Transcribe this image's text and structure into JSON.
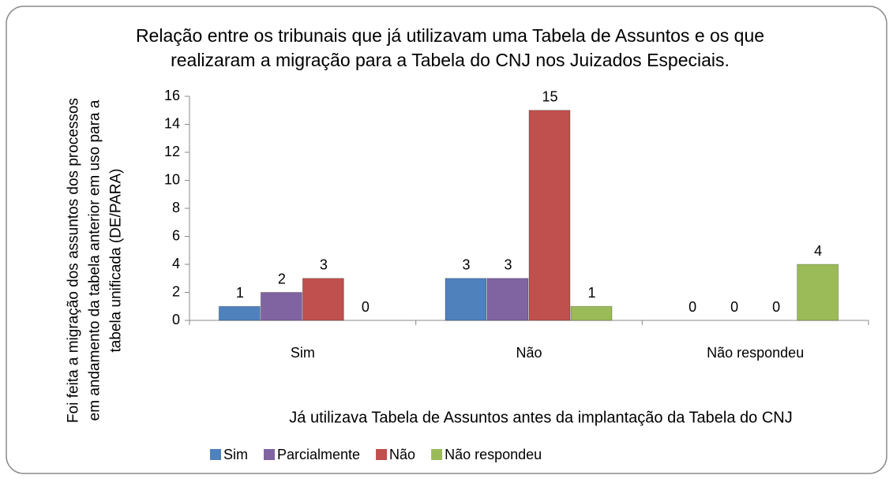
{
  "chart_data": {
    "type": "bar",
    "title": "Relação entre os tribunais que já utilizavam uma Tabela de Assuntos e os que realizaram a migração para a Tabela do CNJ nos Juizados Especiais.",
    "x_label": "Já utilizava Tabela de Assuntos antes da implantação da Tabela do CNJ",
    "y_label": "Foi feita a migração dos assuntos dos processos em andamento da tabela anterior em uso para a tabela unificada (DE/PARA)",
    "categories": [
      "Sim",
      "Não",
      "Não respondeu"
    ],
    "series": [
      {
        "name": "Sim",
        "color": "#4f81bd",
        "values": [
          1,
          3,
          0
        ]
      },
      {
        "name": "Parcialmente",
        "color": "#8064a2",
        "values": [
          2,
          3,
          0
        ]
      },
      {
        "name": "Não",
        "color": "#c0504d",
        "values": [
          3,
          15,
          0
        ]
      },
      {
        "name": "Não respondeu",
        "color": "#9bbb59",
        "values": [
          0,
          1,
          4
        ]
      }
    ],
    "ylim": [
      0,
      16
    ],
    "yticks": [
      0,
      2,
      4,
      6,
      8,
      10,
      12,
      14,
      16
    ],
    "legend": "bottom"
  }
}
